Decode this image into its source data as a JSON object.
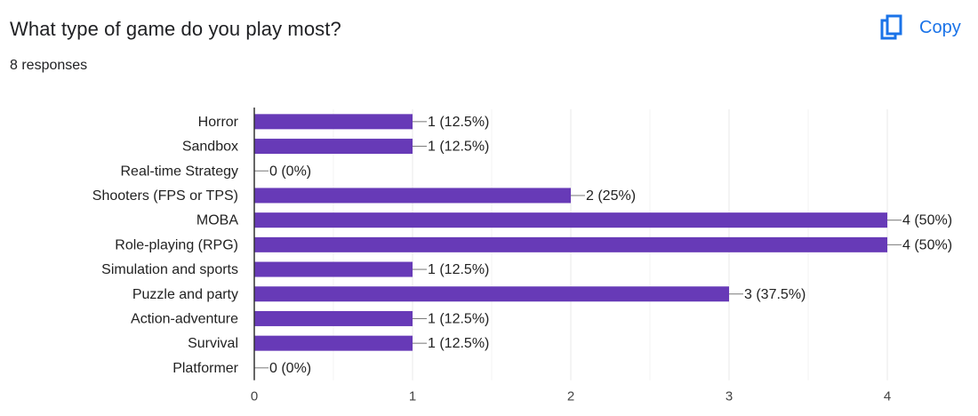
{
  "question": {
    "title": "What type of game do you play most?",
    "responses": "8 responses"
  },
  "copy_button": {
    "label": "Copy",
    "icon": "copy-icon"
  },
  "colors": {
    "bar": "#673ab7",
    "accent": "#1a73e8"
  },
  "chart_data": {
    "type": "bar",
    "orientation": "horizontal",
    "categories": [
      "Horror",
      "Sandbox",
      "Real-time Strategy",
      "Shooters (FPS or TPS)",
      "MOBA",
      "Role-playing (RPG)",
      "Simulation and sports",
      "Puzzle and party",
      "Action-adventure",
      "Survival",
      "Platformer"
    ],
    "values": [
      1,
      1,
      0,
      2,
      4,
      4,
      1,
      3,
      1,
      1,
      0
    ],
    "data_labels": [
      "1 (12.5%)",
      "1 (12.5%)",
      "0 (0%)",
      "2 (25%)",
      "4 (50%)",
      "4 (50%)",
      "1 (12.5%)",
      "3 (37.5%)",
      "1 (12.5%)",
      "1 (12.5%)",
      "0 (0%)"
    ],
    "x_ticks": [
      0,
      1,
      2,
      3,
      4
    ],
    "xlim": [
      0,
      4
    ],
    "grid": true,
    "title": "",
    "xlabel": "",
    "ylabel": ""
  }
}
